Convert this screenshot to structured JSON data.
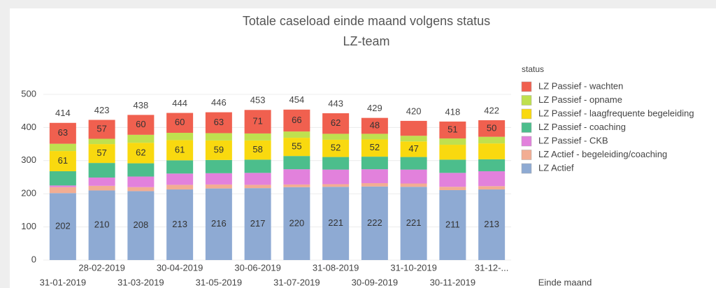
{
  "chart_data": {
    "type": "stacked-bar",
    "title": "Totale caseload einde maand volgens status",
    "subtitle": "LZ-team",
    "x_label": "Einde maand",
    "legend_title": "status",
    "categories": [
      "31-01-2019",
      "28-02-2019",
      "31-03-2019",
      "30-04-2019",
      "31-05-2019",
      "30-06-2019",
      "31-07-2019",
      "31-08-2019",
      "30-09-2019",
      "31-10-2019",
      "30-11-2019",
      "31-12-..."
    ],
    "totals": [
      414,
      423,
      438,
      444,
      446,
      453,
      454,
      443,
      429,
      420,
      418,
      422
    ],
    "ylim": [
      0,
      500
    ],
    "yticks": [
      0,
      100,
      200,
      300,
      400,
      500
    ],
    "grid": true,
    "series": [
      {
        "name": "LZ Actief",
        "color": "#8eaad3",
        "values": [
          202,
          210,
          208,
          213,
          216,
          217,
          220,
          221,
          222,
          221,
          211,
          213
        ],
        "value_labels": [
          202,
          210,
          208,
          213,
          216,
          217,
          220,
          221,
          222,
          221,
          211,
          213
        ]
      },
      {
        "name": "LZ Actief - begeleiding/coaching",
        "color": "#f2ad93",
        "values": [
          18,
          14,
          12,
          14,
          12,
          10,
          8,
          8,
          10,
          10,
          10,
          10
        ]
      },
      {
        "name": "LZ Passief - CKB",
        "color": "#e281dc",
        "values": [
          5,
          25,
          32,
          34,
          34,
          36,
          46,
          44,
          42,
          42,
          42,
          45
        ]
      },
      {
        "name": "LZ Passief - coaching",
        "color": "#4cbe8c",
        "values": [
          43,
          44,
          40,
          40,
          40,
          40,
          40,
          38,
          38,
          38,
          40,
          36
        ]
      },
      {
        "name": "LZ Passief - laagfrequente begeleiding",
        "color": "#f9d90f",
        "values": [
          61,
          57,
          62,
          61,
          59,
          58,
          55,
          52,
          52,
          47,
          45,
          48
        ],
        "value_labels": [
          61,
          57,
          62,
          61,
          59,
          58,
          55,
          52,
          52,
          47,
          null,
          null
        ]
      },
      {
        "name": "LZ Passief - opname",
        "color": "#bfe04f",
        "values": [
          22,
          16,
          24,
          22,
          22,
          21,
          19,
          18,
          17,
          17,
          19,
          20
        ]
      },
      {
        "name": "LZ Passief - wachten",
        "color": "#f0604f",
        "values": [
          63,
          57,
          60,
          60,
          63,
          71,
          66,
          62,
          48,
          45,
          51,
          50
        ],
        "value_labels": [
          63,
          57,
          60,
          60,
          63,
          71,
          66,
          62,
          48,
          null,
          51,
          50
        ]
      }
    ]
  }
}
